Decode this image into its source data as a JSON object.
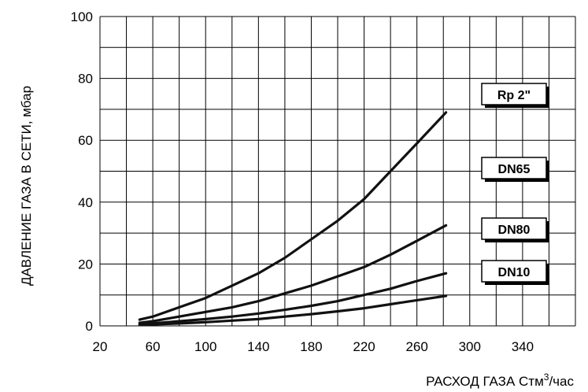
{
  "chart_data": {
    "type": "line",
    "title": "",
    "xlabel": "РАСХОД ГАЗА Стм",
    "xlabel_sup": "3",
    "xlabel_suffix": "/час",
    "ylabel": "ДАВЛЕНИЕ ГАЗА В СЕТИ, мбар",
    "xlim": [
      20,
      380
    ],
    "ylim": [
      0,
      100
    ],
    "x_ticks": [
      20,
      60,
      100,
      140,
      180,
      220,
      260,
      300,
      340
    ],
    "y_ticks": [
      0,
      20,
      40,
      60,
      80,
      100
    ],
    "grid": true,
    "legend_placement": "right",
    "series": [
      {
        "name": "Rp 2\"",
        "x": [
          50,
          60,
          80,
          100,
          120,
          140,
          160,
          180,
          200,
          220,
          240,
          260,
          282
        ],
        "values": [
          2,
          3,
          6,
          9,
          13,
          17,
          22,
          28,
          34,
          41,
          50,
          59,
          69
        ]
      },
      {
        "name": "DN65",
        "x": [
          50,
          60,
          80,
          100,
          120,
          140,
          160,
          180,
          200,
          220,
          240,
          260,
          282
        ],
        "values": [
          1,
          1.5,
          3,
          4.5,
          6,
          8,
          10.5,
          13,
          16,
          19,
          23,
          27.5,
          32.5
        ]
      },
      {
        "name": "DN80",
        "x": [
          50,
          60,
          80,
          100,
          120,
          140,
          160,
          180,
          200,
          220,
          240,
          260,
          282
        ],
        "values": [
          0.5,
          0.8,
          1.5,
          2.2,
          3,
          4,
          5.2,
          6.5,
          8,
          10,
          12,
          14.5,
          17
        ]
      },
      {
        "name": "DN10",
        "x": [
          50,
          60,
          80,
          100,
          120,
          140,
          160,
          180,
          200,
          220,
          240,
          260,
          282
        ],
        "values": [
          0.3,
          0.5,
          0.8,
          1.2,
          1.7,
          2.2,
          3,
          3.8,
          4.7,
          5.7,
          7,
          8.3,
          9.7
        ]
      }
    ]
  }
}
